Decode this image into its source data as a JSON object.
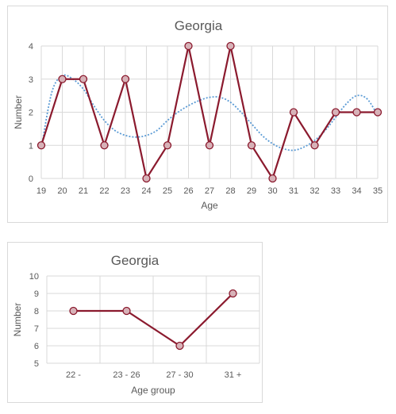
{
  "chart_data": [
    {
      "type": "line",
      "title": "Georgia",
      "xlabel": "Age",
      "ylabel": "Number",
      "x": [
        19,
        20,
        21,
        22,
        23,
        24,
        25,
        26,
        27,
        28,
        29,
        30,
        31,
        32,
        33,
        34,
        35
      ],
      "series": [
        {
          "values": [
            1,
            3,
            3,
            1,
            3,
            0,
            1,
            4,
            1,
            4,
            1,
            0,
            2,
            1,
            2,
            2,
            2
          ]
        }
      ],
      "trendline": {
        "style": "dotted",
        "x": [
          19,
          19.5,
          20,
          20.5,
          21,
          21.5,
          22,
          22.5,
          23,
          23.5,
          24,
          24.5,
          25,
          25.5,
          26,
          26.5,
          27,
          27.5,
          28,
          28.5,
          29,
          29.5,
          30,
          30.5,
          31,
          31.5,
          32,
          32.5,
          33,
          33.5,
          34,
          34.5,
          35
        ],
        "values": [
          0.9,
          2.6,
          3.1,
          3.0,
          2.7,
          2.2,
          1.75,
          1.45,
          1.3,
          1.25,
          1.3,
          1.45,
          1.75,
          2.0,
          2.2,
          2.35,
          2.45,
          2.45,
          2.3,
          2.0,
          1.65,
          1.3,
          1.05,
          0.9,
          0.85,
          0.95,
          1.15,
          1.45,
          1.85,
          2.25,
          2.5,
          2.4,
          1.9
        ]
      },
      "ylim": [
        0,
        4
      ],
      "yticks": [
        0,
        1,
        2,
        3,
        4
      ],
      "grid": true,
      "colors": {
        "line": "#8B1A2E",
        "marker_fill": "#D7B2B8",
        "trend": "#5B9BD5",
        "grid": "#d9d9d9"
      }
    },
    {
      "type": "line",
      "title": "Georgia",
      "xlabel": "Age group",
      "ylabel": "Number",
      "categories": [
        "22 -",
        "23 - 26",
        "27 - 30",
        "31 +"
      ],
      "series": [
        {
          "values": [
            8,
            8,
            6,
            9
          ]
        }
      ],
      "ylim": [
        5,
        10
      ],
      "yticks": [
        5,
        6,
        7,
        8,
        9,
        10
      ],
      "grid": true,
      "colors": {
        "line": "#8B1A2E",
        "marker_fill": "#D7B2B8",
        "grid": "#d9d9d9"
      }
    }
  ]
}
